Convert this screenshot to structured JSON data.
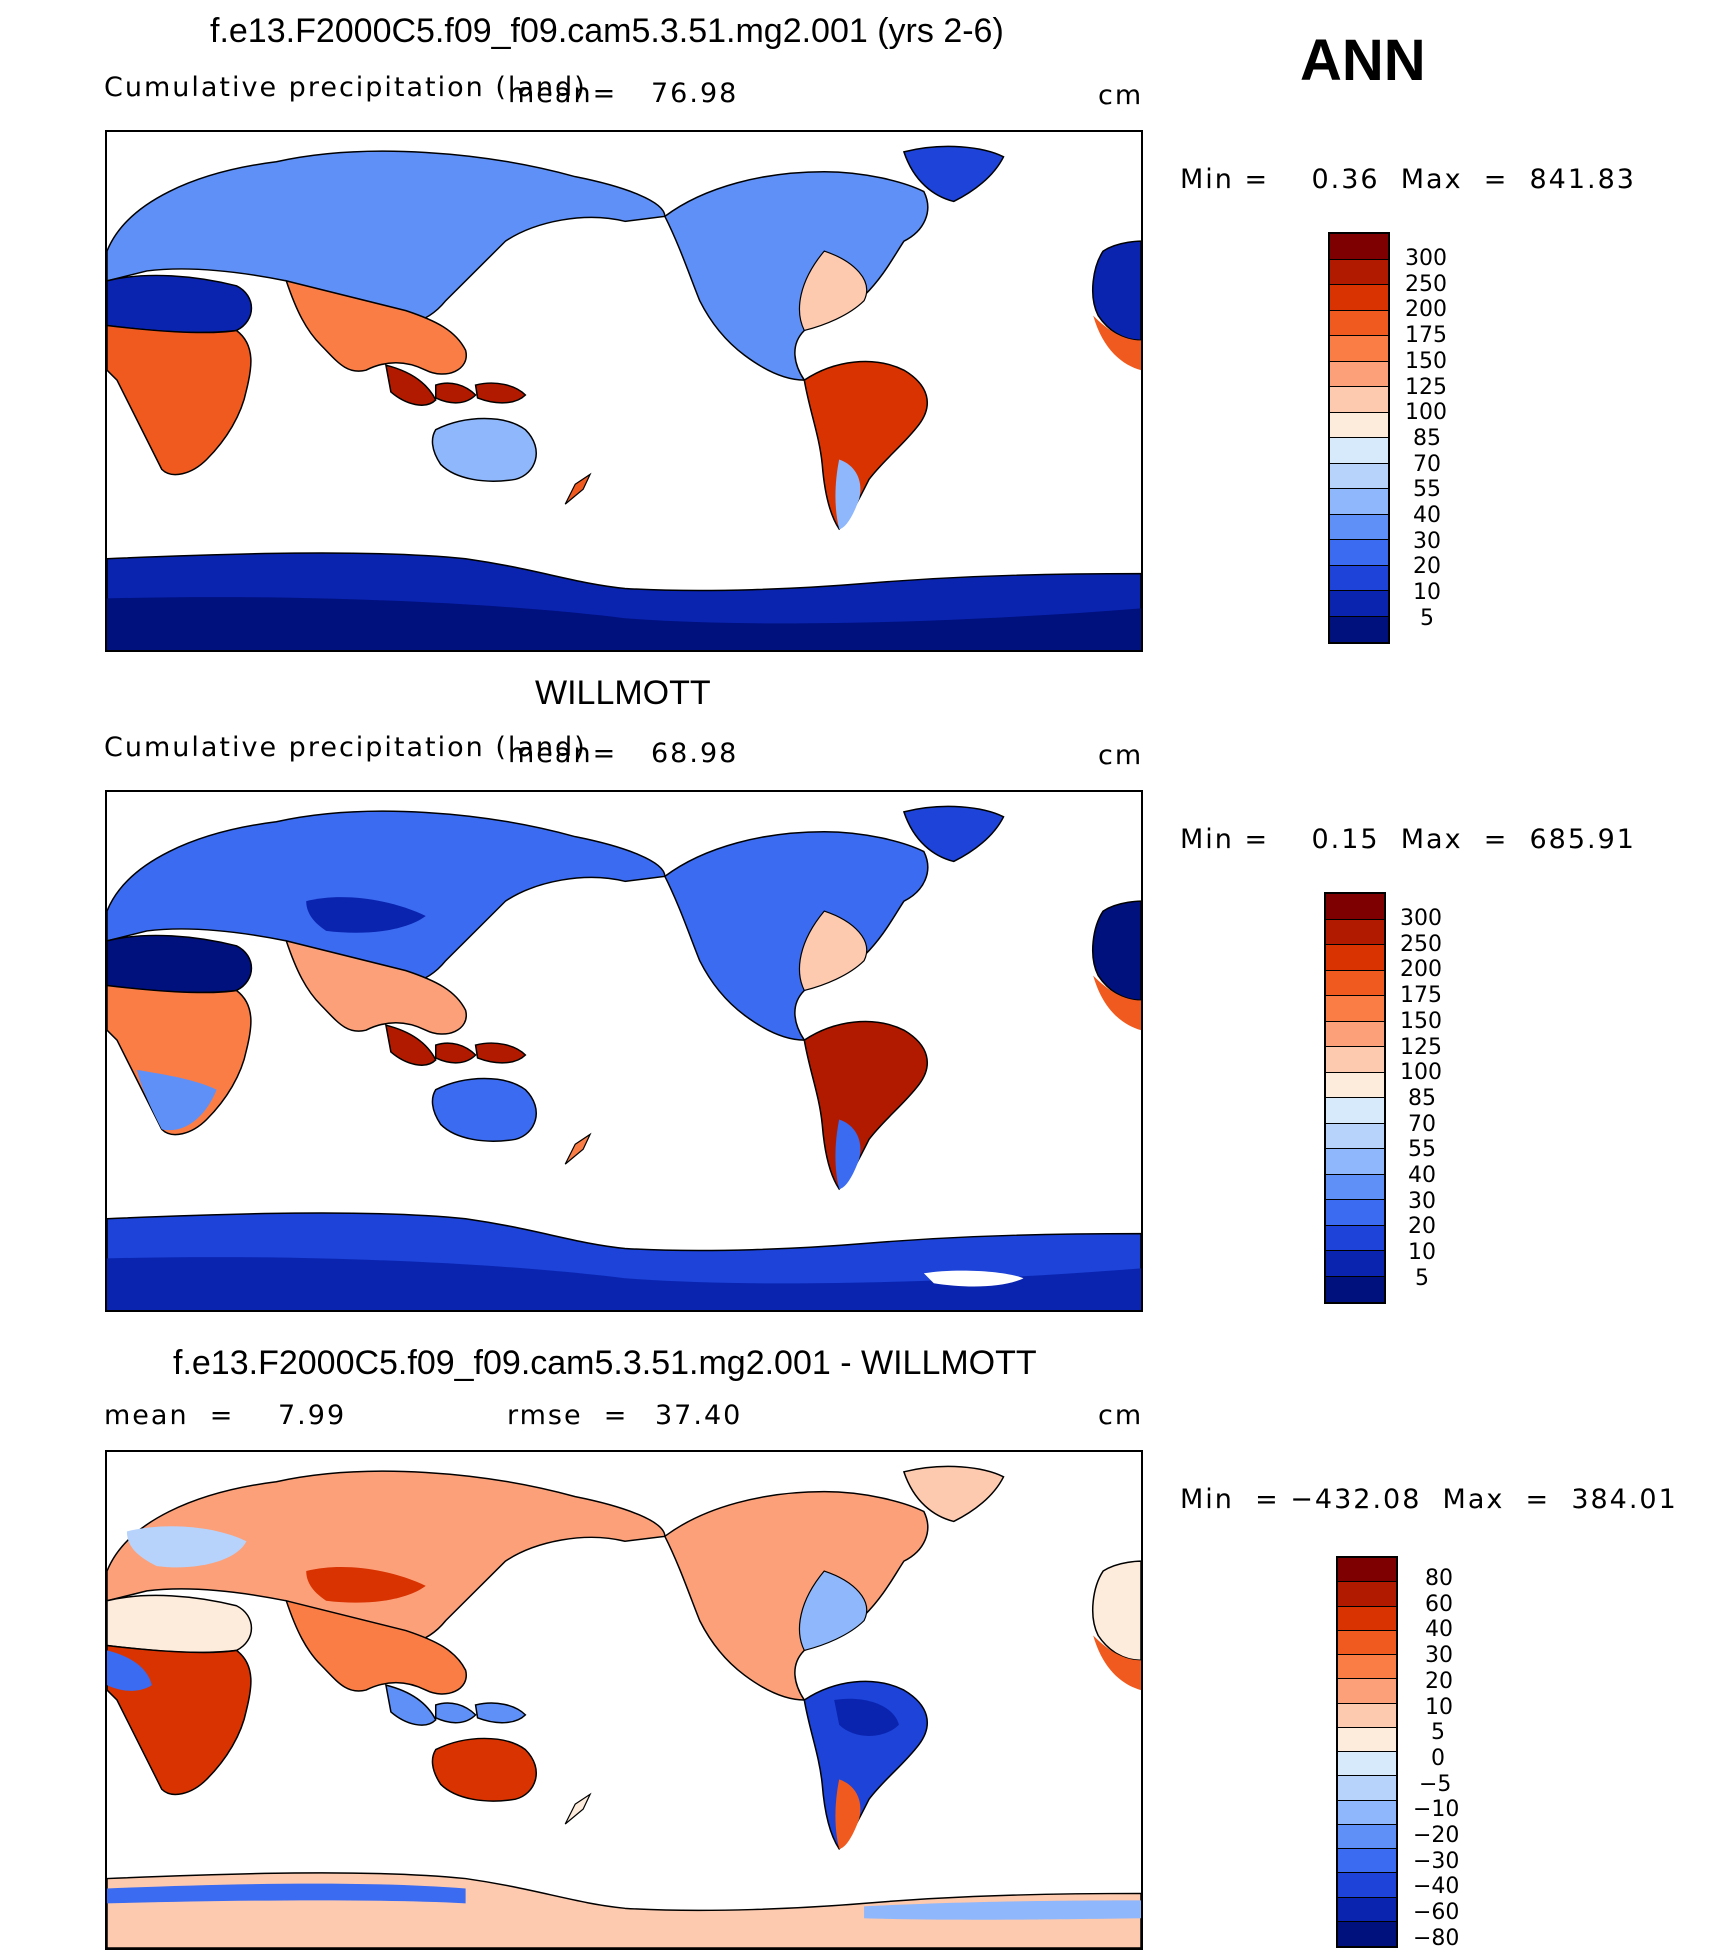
{
  "season": "ANN",
  "panels": [
    {
      "id": "model",
      "title": "f.e13.F2000C5.f09_f09.cam5.3.51.mg2.001 (yrs 2-6)",
      "subtitle": "Cumulative precipitation (land)",
      "stat1_label": "mean=",
      "stat1_value": "76.98",
      "units": "cm",
      "minmax": "Min =    0.36  Max  =  841.83",
      "colorbar_labels": [
        "300",
        "250",
        "200",
        "175",
        "150",
        "125",
        "100",
        "85",
        "70",
        "55",
        "40",
        "30",
        "20",
        "10",
        "5"
      ],
      "colors": [
        "#7f0000",
        "#b21a00",
        "#d83300",
        "#f05a1e",
        "#fa7d46",
        "#fca07a",
        "#fdcab0",
        "#fdebdc",
        "#d6eafc",
        "#b7d3fb",
        "#8fb7fb",
        "#5f90f7",
        "#3b6bf0",
        "#1d43d8",
        "#0a24b0",
        "#00107d"
      ]
    },
    {
      "id": "obs",
      "title": "WILLMOTT",
      "subtitle": "Cumulative precipitation (land)",
      "stat1_label": "mean=",
      "stat1_value": "68.98",
      "units": "cm",
      "minmax": "Min =    0.15  Max  =  685.91",
      "colorbar_labels": [
        "300",
        "250",
        "200",
        "175",
        "150",
        "125",
        "100",
        "85",
        "70",
        "55",
        "40",
        "30",
        "20",
        "10",
        "5"
      ],
      "colors": [
        "#7f0000",
        "#b21a00",
        "#d83300",
        "#f05a1e",
        "#fa7d46",
        "#fca07a",
        "#fdcab0",
        "#fdebdc",
        "#d6eafc",
        "#b7d3fb",
        "#8fb7fb",
        "#5f90f7",
        "#3b6bf0",
        "#1d43d8",
        "#0a24b0",
        "#00107d"
      ]
    },
    {
      "id": "diff",
      "title": "f.e13.F2000C5.f09_f09.cam5.3.51.mg2.001 - WILLMOTT",
      "stat1_label": "mean  =",
      "stat1_value": "7.99",
      "stat2_label": "rmse  =",
      "stat2_value": "37.40",
      "units": "cm",
      "minmax": "Min  = −432.08  Max  =  384.01",
      "colorbar_labels": [
        "80",
        "60",
        "40",
        "30",
        "20",
        "10",
        "5",
        "0",
        "−5",
        "−10",
        "−20",
        "−30",
        "−40",
        "−60",
        "−80"
      ],
      "colors": [
        "#7f0000",
        "#b21a00",
        "#d83300",
        "#f05a1e",
        "#fa7d46",
        "#fca07a",
        "#fdcab0",
        "#fdebdc",
        "#d6eafc",
        "#b7d3fb",
        "#8fb7fb",
        "#5f90f7",
        "#3b6bf0",
        "#1d43d8",
        "#0a24b0",
        "#00107d"
      ]
    }
  ]
}
